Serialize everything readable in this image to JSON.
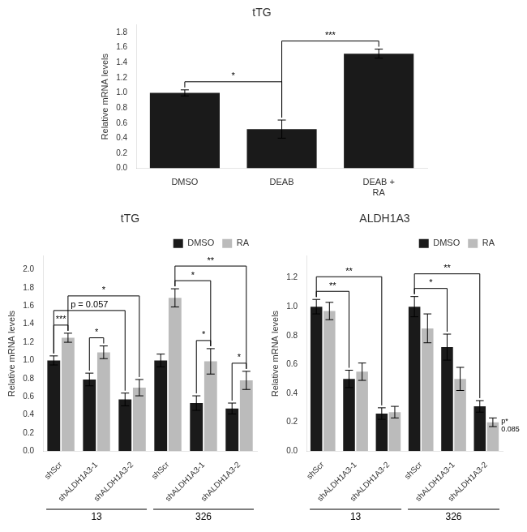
{
  "chart_data": [
    {
      "type": "bar",
      "title": "tTG",
      "categories": [
        "DMSO",
        "DEAB",
        "DEAB +\nRA"
      ],
      "values": [
        1.0,
        0.52,
        1.52
      ],
      "errors": [
        0.04,
        0.12,
        0.06
      ],
      "color": "#1a1a1a",
      "ylabel": "Relative mRNA levels",
      "ylim": [
        0,
        1.9
      ],
      "yticks": [
        {
          "value": 0,
          "label": "0.0"
        },
        0.2,
        0.4,
        0.6,
        0.8,
        {
          "value": 1.0,
          "label": "1.0"
        },
        1.2,
        1.4,
        1.6,
        1.8
      ],
      "grid": false,
      "annotations": [
        "*",
        "***"
      ]
    },
    {
      "type": "bar",
      "title": "tTG",
      "categories": [
        "shScr",
        "shALDH1A3-1",
        "shALDH1A3-2",
        "shScr",
        "shALDH1A3-1",
        "shALDH1A3-2"
      ],
      "series": [
        {
          "name": "DMSO",
          "color": "#1a1a1a",
          "values": [
            1.0,
            0.79,
            0.57,
            1.0,
            0.53,
            0.47
          ],
          "errors": [
            0.05,
            0.07,
            0.07,
            0.07,
            0.08,
            0.06
          ]
        },
        {
          "name": "RA",
          "color": "#bbbbbb",
          "values": [
            1.25,
            1.09,
            0.7,
            1.69,
            0.99,
            0.78
          ],
          "errors": [
            0.05,
            0.07,
            0.09,
            0.1,
            0.14,
            0.1
          ]
        }
      ],
      "ylabel": "Relative mRNA levels",
      "ylim": [
        0,
        2.15
      ],
      "yticks": [
        {
          "value": 0,
          "label": "0.0"
        },
        0.2,
        0.4,
        0.6,
        0.8,
        {
          "value": 1.0,
          "label": "1.0"
        },
        1.2,
        1.4,
        1.6,
        1.8,
        {
          "value": 2.0,
          "label": "2.0"
        }
      ],
      "grid": false,
      "legend": "top-right",
      "annotations": [
        "13",
        "326",
        "***",
        "*",
        "*",
        "*",
        "p = 0.057",
        "*",
        "*",
        "**"
      ]
    },
    {
      "type": "bar",
      "title": "ALDH1A3",
      "categories": [
        "shScr",
        "shALDH1A3-1",
        "shALDH1A3-2",
        "shScr",
        "shALDH1A3-1",
        "shALDH1A3-2"
      ],
      "series": [
        {
          "name": "DMSO",
          "color": "#1a1a1a",
          "values": [
            1.0,
            0.5,
            0.26,
            1.0,
            0.72,
            0.31
          ],
          "errors": [
            0.05,
            0.06,
            0.04,
            0.07,
            0.09,
            0.04
          ]
        },
        {
          "name": "RA",
          "color": "#bbbbbb",
          "values": [
            0.97,
            0.55,
            0.27,
            0.85,
            0.5,
            0.2
          ],
          "errors": [
            0.06,
            0.06,
            0.04,
            0.1,
            0.08,
            0.03
          ]
        }
      ],
      "ylabel": "Relative mRNA levels",
      "ylim": [
        0,
        1.35
      ],
      "yticks": [
        {
          "value": 0,
          "label": "0.0"
        },
        0.2,
        0.4,
        0.6,
        0.8,
        {
          "value": 1.0,
          "label": "1.0"
        },
        1.2
      ],
      "grid": false,
      "legend": "top-right",
      "annotations": [
        "13",
        "326",
        "**",
        "**",
        "*",
        "**",
        "p*\n0.085"
      ]
    }
  ]
}
